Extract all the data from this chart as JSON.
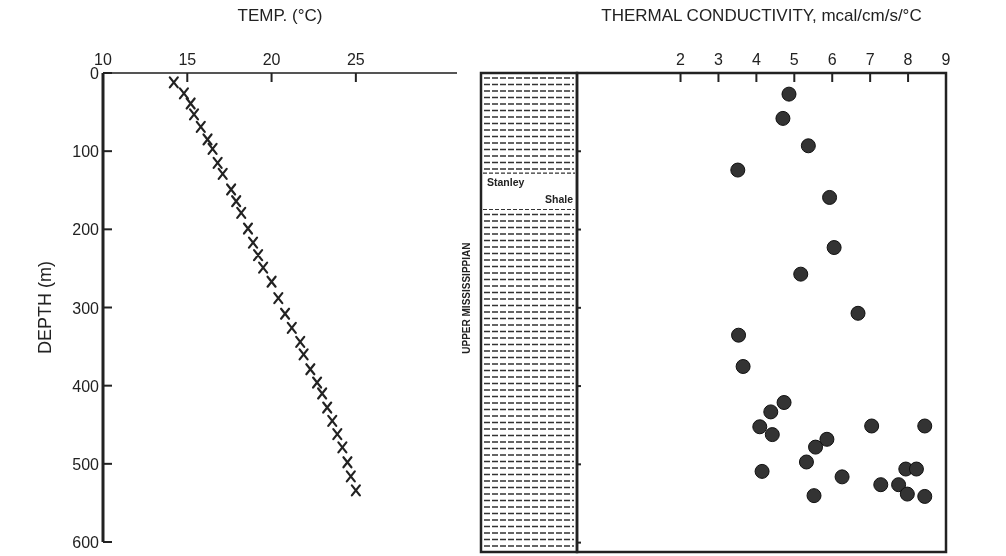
{
  "chart_data": [
    {
      "type": "scatter",
      "xlabel": "TEMP. (°C)",
      "ylabel": "DEPTH (m)",
      "xlim": [
        10,
        31
      ],
      "xticks": [
        10,
        15,
        20,
        25
      ],
      "ylim": [
        600,
        0
      ],
      "yticks": [
        0,
        100,
        200,
        300,
        400,
        500,
        600
      ],
      "marker": "cross",
      "grid": false,
      "series": [
        {
          "color": "#222222",
          "x": [
            14.2,
            14.8,
            15.2,
            15.4,
            15.8,
            16.2,
            16.5,
            16.8,
            17.1,
            17.6,
            17.9,
            18.2,
            18.6,
            18.9,
            19.2,
            19.5,
            20.0,
            20.4,
            20.8,
            21.2,
            21.7,
            21.9,
            22.3,
            22.7,
            23.0,
            23.3,
            23.6,
            23.9,
            24.2,
            24.5,
            24.7,
            25.0
          ],
          "values": [
            12,
            26,
            39,
            53,
            69,
            85,
            97,
            115,
            129,
            149,
            164,
            179,
            199,
            217,
            233,
            249,
            267,
            288,
            308,
            326,
            344,
            360,
            379,
            396,
            410,
            428,
            445,
            462,
            479,
            498,
            516,
            534
          ]
        }
      ]
    },
    {
      "type": "scatter",
      "xlabel": "THERMAL CONDUCTIVITY, mcal/cm/s/°C",
      "xlim": [
        -0.73,
        9
      ],
      "xticks": [
        2,
        3,
        4,
        5,
        6,
        7,
        8,
        9
      ],
      "ylim": [
        612,
        0
      ],
      "yticks": [
        0,
        100,
        200,
        300,
        400,
        500,
        600
      ],
      "tick_labels": "x",
      "marker": "circle",
      "grid": false,
      "annotations": [
        "UPPER MISSISSIPPIAN",
        "Stanley Shale"
      ],
      "series": [
        {
          "color": "#333333",
          "x": [
            4.86,
            4.7,
            5.37,
            3.51,
            5.93,
            6.05,
            5.17,
            6.68,
            3.53,
            3.65,
            4.73,
            4.38,
            4.09,
            4.42,
            7.04,
            8.44,
            5.86,
            5.56,
            5.32,
            4.15,
            6.26,
            7.94,
            8.22,
            7.28,
            7.75,
            7.98,
            8.44,
            5.52
          ],
          "values": [
            27,
            58,
            93,
            124,
            159,
            223,
            257,
            307,
            335,
            375,
            421,
            433,
            452,
            462,
            451,
            451,
            468,
            478,
            497,
            509,
            516,
            506,
            506,
            526,
            526,
            538,
            541,
            540
          ]
        }
      ]
    }
  ]
}
